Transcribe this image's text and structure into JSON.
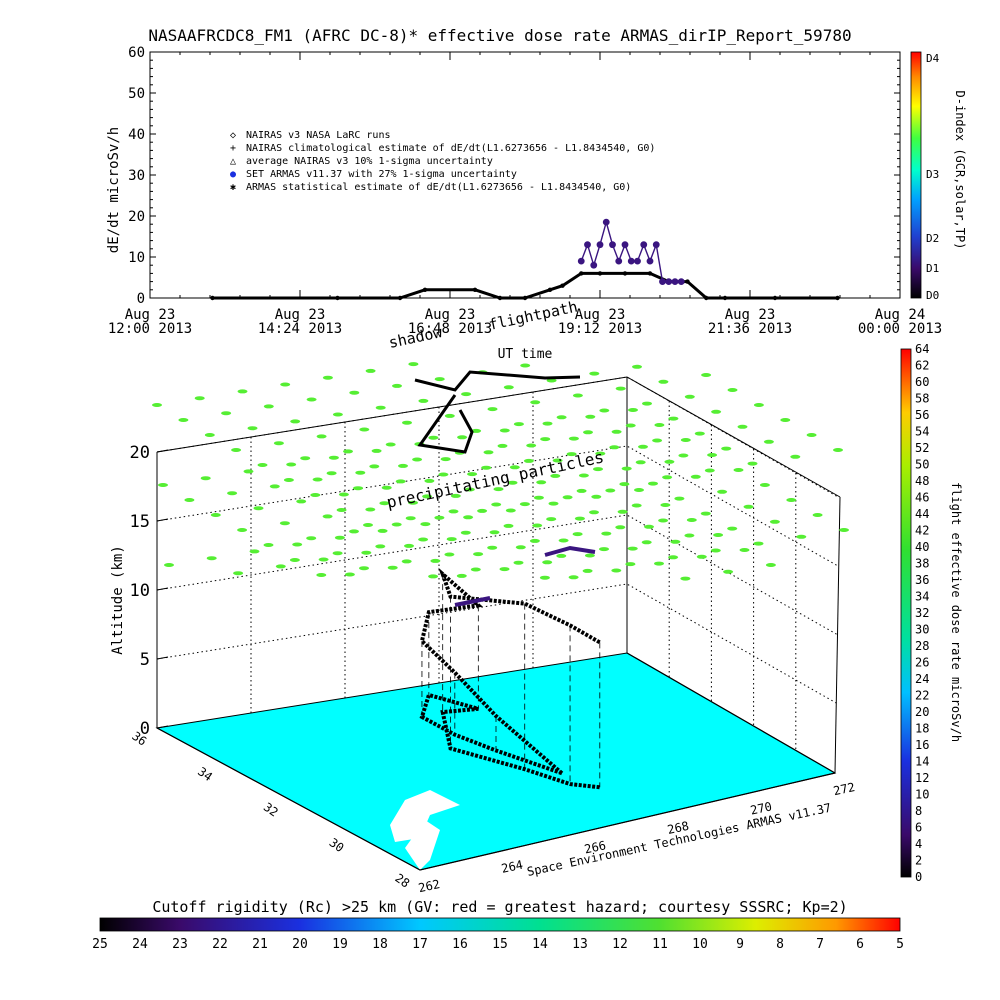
{
  "title": "NASAAFRCDC8_FM1 (AFRC DC-8)* effective dose rate ARMAS_dirIP_Report_59780",
  "colors": {
    "sea": "#00ffff",
    "precip": "#55ee33",
    "measured": "#3a1580",
    "modeled": "#000000"
  },
  "chart_data": [
    {
      "type": "line",
      "name": "dose-rate-timeseries",
      "ylabel": "dE/dt microSv/h",
      "xlabel": "UT time",
      "ylim": [
        0,
        60
      ],
      "yticks": [
        0,
        10,
        20,
        30,
        40,
        50,
        60
      ],
      "xlim_hours": [
        12.0,
        24.0
      ],
      "xticks": [
        {
          "hour": 12.0,
          "l1": "Aug 23",
          "l2": "12:00 2013"
        },
        {
          "hour": 14.4,
          "l1": "Aug 23",
          "l2": "14:24 2013"
        },
        {
          "hour": 16.8,
          "l1": "Aug 23",
          "l2": "16:48 2013"
        },
        {
          "hour": 19.2,
          "l1": "Aug 23",
          "l2": "19:12 2013"
        },
        {
          "hour": 21.6,
          "l1": "Aug 23",
          "l2": "21:36 2013"
        },
        {
          "hour": 24.0,
          "l1": "Aug 24",
          "l2": "00:00 2013"
        }
      ],
      "legend": [
        {
          "symbol": "◇",
          "text": "NAIRAS v3 NASA LaRC runs"
        },
        {
          "symbol": "+",
          "text": "NAIRAS climatological estimate of dE/dt(L1.6273656 - L1.8434540, G0)"
        },
        {
          "symbol": "△",
          "text": "average NAIRAS v3 10% 1-sigma uncertainty"
        },
        {
          "symbol": "●",
          "text": "SET ARMAS v11.37 with 27% 1-sigma uncertainty"
        },
        {
          "symbol": "✱",
          "text": "ARMAS statistical estimate of dE/dt(L1.6273656 - L1.8434540, G0)"
        }
      ],
      "series": [
        {
          "name": "NAIRAS climatological estimate",
          "x": [
            13.0,
            15.0,
            16.0,
            16.4,
            17.2,
            17.6,
            18.0,
            18.4,
            18.6,
            18.9,
            19.2,
            19.6,
            20.0,
            20.3,
            20.6,
            20.9,
            21.2,
            22.0,
            23.0
          ],
          "y": [
            0.0,
            0.0,
            0.0,
            2.0,
            2.0,
            0.0,
            0.0,
            2.0,
            3.0,
            6.0,
            6.0,
            6.0,
            6.0,
            4.0,
            4.0,
            0.0,
            0.0,
            0.0,
            0.0
          ]
        },
        {
          "name": "SET ARMAS v11.37",
          "x": [
            18.9,
            19.0,
            19.1,
            19.2,
            19.3,
            19.4,
            19.5,
            19.6,
            19.7,
            19.8,
            19.9,
            20.0,
            20.1,
            20.2,
            20.3,
            20.4,
            20.5
          ],
          "y": [
            9.0,
            13.0,
            8.0,
            13.0,
            18.5,
            13.0,
            9.0,
            13.0,
            9.0,
            9.0,
            13.0,
            9.0,
            13.0,
            4.0,
            4.0,
            4.0,
            4.0
          ]
        }
      ],
      "colorbar": {
        "label": "D-index (GCR,solar,TP)",
        "ticks": [
          "D4",
          "D3",
          "D2",
          "D1",
          "D0"
        ]
      }
    },
    {
      "type": "scatter",
      "name": "flight-3d-altitude",
      "zlabel": "Altitude (km)",
      "zlim": [
        0,
        20
      ],
      "zticks": [
        0,
        5,
        10,
        15,
        20
      ],
      "lat_ticks": [
        "28",
        "30",
        "32",
        "34",
        "36"
      ],
      "lon_ticks": [
        "262",
        "264",
        "266",
        "268",
        "270",
        "272"
      ],
      "annotations": [
        "shadow",
        "flightpath",
        "precipitating particles",
        "Space Environment Technologies ARMAS v11.37"
      ],
      "flightpath": {
        "lon": [
          267.4,
          267.0,
          266.8,
          266.8,
          267.6,
          268.0,
          267.3,
          266.3,
          266.9,
          267.2,
          267.6
        ],
        "lat": [
          30.5,
          32.0,
          33.0,
          34.0,
          34.8,
          33.8,
          34.0,
          32.5,
          31.0,
          30.0,
          29.6
        ],
        "alt_km": [
          0.0,
          2.5,
          4.5,
          5.5,
          6.0,
          7.5,
          10.0,
          11.0,
          12.0,
          11.5,
          10.5
        ]
      },
      "colorbar": {
        "label": "flight effective dose rate microSv/h",
        "range": [
          0,
          64
        ],
        "ticks": [
          0,
          2,
          4,
          6,
          8,
          10,
          12,
          14,
          16,
          18,
          20,
          22,
          24,
          26,
          28,
          30,
          32,
          34,
          36,
          38,
          40,
          42,
          44,
          46,
          48,
          50,
          52,
          54,
          56,
          58,
          60,
          62,
          64
        ]
      }
    },
    {
      "type": "heatmap",
      "name": "cutoff-rigidity-colorbar",
      "title": "Cutoff rigidity (Rc) >25 km (GV: red = greatest hazard; courtesy SSSRC; Kp=2)",
      "ticks": [
        25,
        24,
        23,
        22,
        21,
        20,
        19,
        18,
        17,
        16,
        15,
        14,
        13,
        12,
        11,
        10,
        9,
        8,
        7,
        6,
        5
      ]
    }
  ]
}
